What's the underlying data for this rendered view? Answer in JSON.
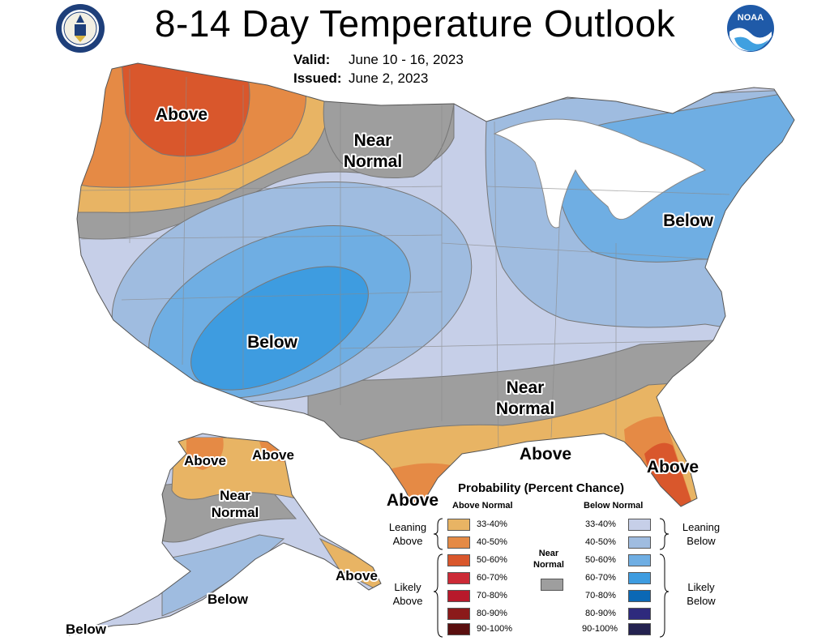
{
  "header": {
    "title": "8-14 Day Temperature Outlook",
    "valid_label": "Valid:",
    "valid_value": "June 10 - 16, 2023",
    "issued_label": "Issued:",
    "issued_value": "June 2, 2023"
  },
  "logos": {
    "left": "doc-seal-icon",
    "right": "noaa-logo-icon",
    "noaa_text": "NOAA"
  },
  "colors": {
    "above_33_40": "#e8b464",
    "above_40_50": "#e58a45",
    "above_50_60": "#d9572c",
    "above_60_70": "#cc2a36",
    "above_70_80": "#b8192b",
    "above_80_90": "#8b1a1a",
    "above_90_100": "#5a0f0f",
    "near_normal": "#9e9e9e",
    "below_33_40": "#c6cfe8",
    "below_40_50": "#9fbce0",
    "below_50_60": "#6faee3",
    "below_60_70": "#3e9ce0",
    "below_70_80": "#0b68b5",
    "below_80_90": "#2e2a7d",
    "below_90_100": "#242250"
  },
  "map_labels": {
    "nw_above": "Above",
    "north_near_top": "Near",
    "north_near_bottom": "Normal",
    "ne_below": "Below",
    "sw_below": "Below",
    "south_near_top": "Near",
    "south_near_bottom": "Normal",
    "gulf_above": "Above",
    "fl_above": "Above",
    "tx_above": "Above",
    "ak_above_w": "Above",
    "ak_above_e": "Above",
    "ak_near_top": "Near",
    "ak_near_bottom": "Normal",
    "ak_below": "Below",
    "ak_se_above": "Above",
    "ak_aleutian_below": "Below"
  },
  "legend": {
    "title": "Probability (Percent Chance)",
    "above_head": "Above Normal",
    "below_head": "Below Normal",
    "near_label_top": "Near",
    "near_label_bottom": "Normal",
    "leaning_above_1": "Leaning",
    "leaning_above_2": "Above",
    "likely_above_1": "Likely",
    "likely_above_2": "Above",
    "leaning_below_1": "Leaning",
    "leaning_below_2": "Below",
    "likely_below_1": "Likely",
    "likely_below_2": "Below",
    "bins": [
      "33-40%",
      "40-50%",
      "50-60%",
      "60-70%",
      "70-80%",
      "80-90%",
      "90-100%"
    ]
  }
}
